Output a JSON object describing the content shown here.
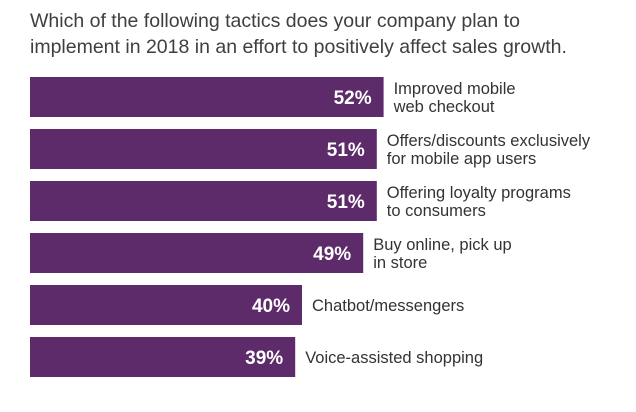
{
  "chart_data": {
    "type": "bar",
    "orientation": "horizontal",
    "title_lines": [
      "Which of the following tactics does your company plan to",
      "implement in 2018 in an effort to positively affect sales growth."
    ],
    "categories": [
      [
        "Improved mobile",
        "web checkout"
      ],
      [
        "Offers/discounts exclusively",
        "for mobile app users"
      ],
      [
        "Offering loyalty programs",
        "to consumers"
      ],
      [
        "Buy online, pick up",
        "in store"
      ],
      [
        "Chatbot/messengers"
      ],
      [
        "Voice-assisted shopping"
      ]
    ],
    "values": [
      52,
      51,
      51,
      49,
      40,
      39
    ],
    "value_labels": [
      "52%",
      "51%",
      "51%",
      "49%",
      "40%",
      "39%"
    ],
    "unit": "%",
    "bar_color": "#5d2a6a",
    "grid": false,
    "legend": "none"
  }
}
